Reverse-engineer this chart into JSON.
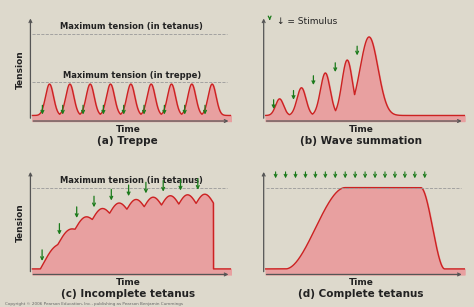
{
  "bg_color": "#ddd9cc",
  "curve_color": "#cc2222",
  "fill_color": "#e8a0a0",
  "arrow_color": "#1a7a1a",
  "dashed_color": "#999999",
  "text_color": "#222222",
  "border_color": "#555555",
  "title_fontsize": 6.5,
  "label_fontsize": 6.5,
  "panel_label_fontsize": 7.5,
  "panels": [
    {
      "label": "(a) Treppe",
      "title": "Maximum tension (in tetanus)",
      "title2": "Maximum tension (in treppe)",
      "ylabel": "Tension",
      "xlabel": "Time",
      "type": "treppe",
      "n_peaks": 9,
      "dline1": 0.88,
      "dline2": 0.36
    },
    {
      "label": "(b) Wave summation",
      "ylabel": null,
      "xlabel": "Time",
      "type": "wave_summation",
      "stimulus_label": "↓ = Stimulus"
    },
    {
      "label": "(c) Incomplete tetanus",
      "title": "Maximum tension (in tetanus)",
      "ylabel": "Tension",
      "xlabel": "Time",
      "type": "incomplete_tetanus",
      "n_peaks": 10,
      "dline1": 0.88
    },
    {
      "label": "(d) Complete tetanus",
      "ylabel": null,
      "xlabel": "Time",
      "type": "complete_tetanus",
      "dline1": 0.88
    }
  ]
}
